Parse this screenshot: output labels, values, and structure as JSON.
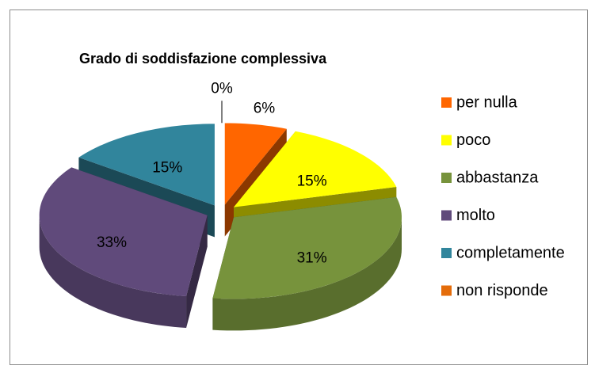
{
  "chart_data": {
    "type": "pie",
    "title": "Grado di soddisfazione complessiva",
    "categories": [
      "per nulla",
      "poco",
      "abbastanza",
      "molto",
      "completamente",
      "non risponde"
    ],
    "values": [
      6,
      15,
      31,
      33,
      15,
      0
    ],
    "value_labels": [
      "6%",
      "15%",
      "31%",
      "33%",
      "15%",
      "0%"
    ],
    "colors": [
      "#ff6600",
      "#ffff00",
      "#77933c",
      "#604a7b",
      "#31859c",
      "#e46c0a"
    ],
    "legend": "right"
  }
}
